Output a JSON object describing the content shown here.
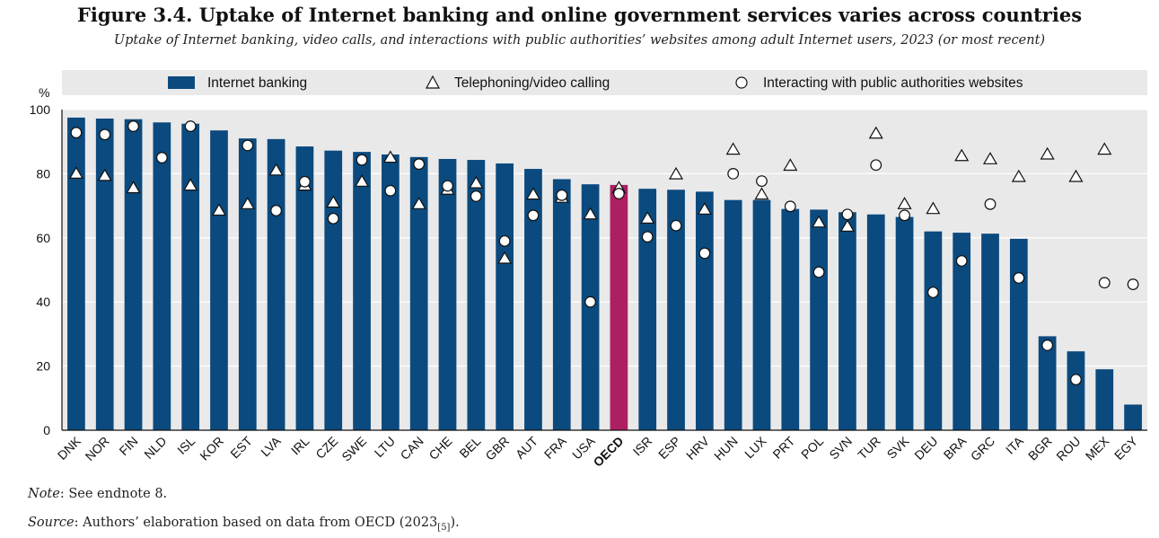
{
  "title": "Figure 3.4. Uptake of Internet banking and online government services varies across countries",
  "subtitle": "Uptake of Internet banking, video calls, and interactions with public authorities’ websites among adult Internet users, 2023 (or most recent)",
  "note_label": "Note",
  "note_text": ": See endnote 8.",
  "source_label": "Source",
  "source_text": ": Authors’ elaboration based on data from OECD (2023",
  "source_ref": "[5]",
  "source_end": ").",
  "colors": {
    "bar": "#0b4a7e",
    "highlight": "#ad1f62",
    "plot_bg": "#e9e9ea",
    "grid": "#ffffff"
  },
  "chart_data": {
    "type": "bar",
    "ylabel": "%",
    "ylim": [
      0,
      100
    ],
    "yticks": [
      0,
      20,
      40,
      60,
      80,
      100
    ],
    "legend_position": "top",
    "highlight_category": "OECD",
    "categories": [
      "DNK",
      "NOR",
      "FIN",
      "NLD",
      "ISL",
      "KOR",
      "EST",
      "LVA",
      "IRL",
      "CZE",
      "SWE",
      "LTU",
      "CAN",
      "CHE",
      "BEL",
      "GBR",
      "AUT",
      "FRA",
      "USA",
      "OECD",
      "ISR",
      "ESP",
      "HRV",
      "HUN",
      "LUX",
      "PRT",
      "POL",
      "SVN",
      "TUR",
      "SVK",
      "DEU",
      "BRA",
      "GRC",
      "ITA",
      "BGR",
      "ROU",
      "MEX",
      "EGY"
    ],
    "series": [
      {
        "name": "Internet banking",
        "marker": "bar",
        "values": [
          97.5,
          97.2,
          97.0,
          96.0,
          95.6,
          93.5,
          91.0,
          90.8,
          88.5,
          87.2,
          86.8,
          86.0,
          85.2,
          84.6,
          84.3,
          83.2,
          81.5,
          78.3,
          76.7,
          76.5,
          75.3,
          75.0,
          74.4,
          71.8,
          71.8,
          69.0,
          68.8,
          68.0,
          67.3,
          66.5,
          62.0,
          61.6,
          61.3,
          59.7,
          29.3,
          24.6,
          19.0,
          8.0
        ]
      },
      {
        "name": "Telephoning/video calling",
        "marker": "triangle",
        "values": [
          80.0,
          79.3,
          75.5,
          null,
          76.3,
          68.5,
          70.5,
          81.0,
          76.3,
          71.0,
          77.5,
          85.0,
          70.5,
          75.0,
          77.0,
          53.5,
          73.5,
          72.5,
          67.3,
          75.5,
          66.0,
          79.8,
          68.8,
          87.5,
          73.5,
          82.5,
          64.8,
          63.5,
          92.5,
          70.5,
          69.0,
          85.5,
          84.5,
          79.0,
          86.0,
          79.0,
          87.5,
          null
        ]
      },
      {
        "name": "Interacting with public authorities websites",
        "marker": "circle",
        "values": [
          92.8,
          92.2,
          94.8,
          85.0,
          94.8,
          null,
          88.8,
          68.5,
          77.5,
          66.0,
          84.3,
          74.7,
          83.0,
          76.2,
          73.0,
          59.0,
          67.0,
          73.3,
          40.0,
          73.8,
          60.3,
          63.8,
          55.2,
          80.0,
          77.7,
          69.8,
          49.3,
          67.3,
          82.7,
          67.0,
          43.0,
          52.8,
          70.5,
          47.5,
          26.5,
          15.8,
          46.0,
          45.5
        ]
      }
    ]
  }
}
